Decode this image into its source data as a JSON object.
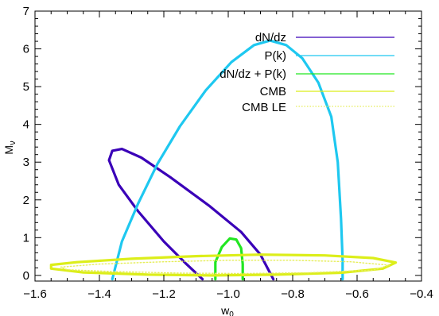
{
  "chart_data": {
    "type": "line",
    "xlabel": "w",
    "xlabel_sub": "0",
    "ylabel": "M",
    "ylabel_sub": "ν",
    "xlim": [
      -1.6,
      -0.4
    ],
    "ylim": [
      -0.15,
      7.0
    ],
    "x_ticks": [
      -1.6,
      -1.4,
      -1.2,
      -1.0,
      -0.8,
      -0.6,
      -0.4
    ],
    "x_tick_labels": [
      "−1.6",
      "−1.4",
      "−1.2",
      "−1.0",
      "−0.8",
      "−0.6",
      "−0.4"
    ],
    "y_ticks": [
      0,
      1,
      2,
      3,
      4,
      5,
      6,
      7
    ],
    "y_tick_labels": [
      "0",
      "1",
      "2",
      "3",
      "4",
      "5",
      "6",
      "7"
    ],
    "grid": false,
    "legend_position": "top-right",
    "series": [
      {
        "name": "dN/dz",
        "color": "#3a00b8",
        "style": "solid",
        "points": [
          [
            -1.08,
            -0.1
          ],
          [
            -1.13,
            0.3
          ],
          [
            -1.2,
            0.9
          ],
          [
            -1.28,
            1.7
          ],
          [
            -1.34,
            2.4
          ],
          [
            -1.37,
            3.05
          ],
          [
            -1.36,
            3.3
          ],
          [
            -1.33,
            3.35
          ],
          [
            -1.27,
            3.12
          ],
          [
            -1.18,
            2.6
          ],
          [
            -1.06,
            1.85
          ],
          [
            -0.96,
            1.15
          ],
          [
            -0.9,
            0.55
          ],
          [
            -0.86,
            -0.1
          ]
        ]
      },
      {
        "name": "P(k)",
        "color": "#1ec8f0",
        "style": "solid",
        "points": [
          [
            -1.36,
            -0.1
          ],
          [
            -1.33,
            0.9
          ],
          [
            -1.28,
            1.9
          ],
          [
            -1.22,
            2.95
          ],
          [
            -1.15,
            3.95
          ],
          [
            -1.07,
            4.9
          ],
          [
            -0.99,
            5.65
          ],
          [
            -0.92,
            6.1
          ],
          [
            -0.87,
            6.22
          ],
          [
            -0.82,
            6.1
          ],
          [
            -0.77,
            5.75
          ],
          [
            -0.72,
            5.1
          ],
          [
            -0.68,
            4.2
          ],
          [
            -0.66,
            3.0
          ],
          [
            -0.65,
            1.5
          ],
          [
            -0.645,
            0.4
          ],
          [
            -0.645,
            -0.1
          ]
        ]
      },
      {
        "name": "dN/dz + P(k)",
        "color": "#22e622",
        "style": "solid",
        "points": [
          [
            -1.04,
            -0.1
          ],
          [
            -1.04,
            0.35
          ],
          [
            -1.02,
            0.75
          ],
          [
            -0.995,
            0.98
          ],
          [
            -0.975,
            0.95
          ],
          [
            -0.96,
            0.72
          ],
          [
            -0.955,
            0.3
          ],
          [
            -0.955,
            -0.1
          ]
        ]
      },
      {
        "name": "CMB",
        "color": "#dcee1a",
        "style": "solid",
        "points": [
          [
            -1.55,
            0.28
          ],
          [
            -1.47,
            0.35
          ],
          [
            -1.3,
            0.44
          ],
          [
            -1.1,
            0.51
          ],
          [
            -0.9,
            0.55
          ],
          [
            -0.7,
            0.53
          ],
          [
            -0.55,
            0.46
          ],
          [
            -0.48,
            0.34
          ],
          [
            -0.52,
            0.18
          ],
          [
            -0.65,
            0.07
          ],
          [
            -0.85,
            0.02
          ],
          [
            -1.05,
            0.0
          ],
          [
            -1.25,
            0.02
          ],
          [
            -1.45,
            0.08
          ],
          [
            -1.55,
            0.18
          ],
          [
            -1.55,
            0.28
          ]
        ]
      },
      {
        "name": "CMB LE",
        "color": "#e6ee5a",
        "style": "dotted",
        "points": [
          [
            -1.52,
            0.22
          ],
          [
            -1.4,
            0.3
          ],
          [
            -1.2,
            0.36
          ],
          [
            -1.0,
            0.4
          ],
          [
            -0.8,
            0.4
          ],
          [
            -0.62,
            0.36
          ],
          [
            -0.5,
            0.27
          ],
          [
            -0.55,
            0.14
          ],
          [
            -0.75,
            0.07
          ],
          [
            -0.95,
            0.05
          ],
          [
            -1.15,
            0.06
          ],
          [
            -1.35,
            0.1
          ],
          [
            -1.5,
            0.15
          ],
          [
            -1.52,
            0.22
          ]
        ]
      }
    ]
  }
}
